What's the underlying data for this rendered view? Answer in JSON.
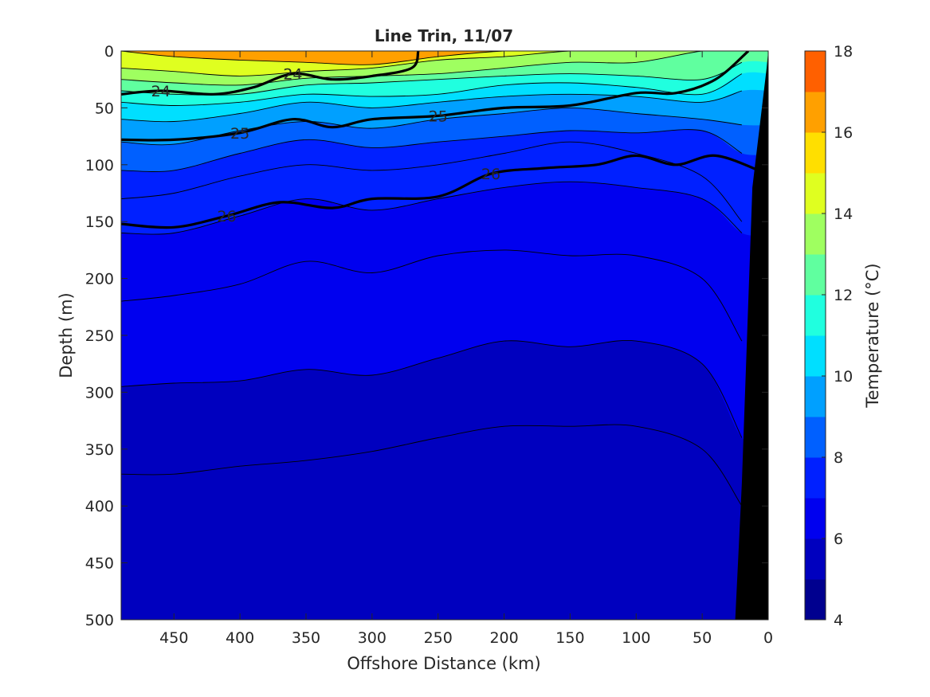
{
  "chart_data": {
    "type": "filled-contour section",
    "title": "Line Trin, 11/07",
    "xlabel": "Offshore Distance (km)",
    "ylabel": "Depth (m)",
    "colorbar_label": "Temperature (°C)",
    "xlim": [
      490,
      0
    ],
    "ylim": [
      0,
      500
    ],
    "x_ticks": [
      "450",
      "400",
      "350",
      "300",
      "250",
      "200",
      "150",
      "100",
      "50",
      "0"
    ],
    "x_tick_values": [
      450,
      400,
      350,
      300,
      250,
      200,
      150,
      100,
      50,
      0
    ],
    "y_ticks": [
      "0",
      "50",
      "100",
      "150",
      "200",
      "250",
      "300",
      "350",
      "400",
      "450",
      "500"
    ],
    "y_tick_values": [
      0,
      50,
      100,
      150,
      200,
      250,
      300,
      350,
      400,
      450,
      500
    ],
    "colorbar_ticks": [
      "4",
      "6",
      "8",
      "10",
      "12",
      "14",
      "16",
      "18"
    ],
    "colorbar_tick_values": [
      4,
      6,
      8,
      10,
      12,
      14,
      16,
      18
    ],
    "temperature_levels": [
      4,
      5,
      6,
      7,
      8,
      9,
      10,
      11,
      12,
      13,
      14,
      15,
      16,
      17,
      18
    ],
    "level_colors": [
      "#00008f",
      "#0000bf",
      "#0000ef",
      "#0020ff",
      "#0060ff",
      "#00a0ff",
      "#00dfff",
      "#20ffdf",
      "#60ff9f",
      "#9fff60",
      "#dfff20",
      "#ffdf00",
      "#ffa000",
      "#ff6000",
      "#ff2000",
      "#bf0000"
    ],
    "bottom_color": "#000000",
    "isotherm_distances_km": [
      490,
      450,
      400,
      350,
      300,
      250,
      200,
      150,
      100,
      50,
      20
    ],
    "isotherm_depths_m": {
      "15": [
        0,
        5,
        8,
        10,
        12,
        5,
        0,
        0,
        0,
        0,
        0
      ],
      "14": [
        15,
        18,
        22,
        18,
        15,
        8,
        5,
        0,
        0,
        0,
        0
      ],
      "13": [
        25,
        28,
        30,
        24,
        22,
        20,
        15,
        10,
        10,
        0,
        0
      ],
      "12": [
        35,
        38,
        38,
        30,
        28,
        25,
        22,
        20,
        22,
        25,
        10
      ],
      "11": [
        45,
        48,
        45,
        38,
        40,
        38,
        30,
        28,
        32,
        38,
        20
      ],
      "10": [
        60,
        62,
        55,
        45,
        50,
        45,
        40,
        38,
        40,
        45,
        35
      ],
      "9": [
        80,
        82,
        70,
        62,
        68,
        60,
        55,
        50,
        55,
        60,
        65
      ],
      "8": [
        105,
        105,
        90,
        78,
        85,
        80,
        75,
        70,
        72,
        70,
        90
      ],
      "7.5": [
        130,
        125,
        110,
        100,
        105,
        100,
        90,
        80,
        90,
        110,
        150
      ],
      "7": [
        160,
        160,
        145,
        130,
        140,
        130,
        120,
        115,
        120,
        130,
        160
      ],
      "6.5": [
        220,
        215,
        205,
        185,
        195,
        180,
        175,
        180,
        180,
        200,
        255
      ],
      "6": [
        295,
        292,
        290,
        280,
        285,
        270,
        255,
        260,
        255,
        275,
        340
      ],
      "5.5": [
        372,
        372,
        365,
        360,
        352,
        340,
        330,
        330,
        330,
        350,
        400
      ],
      "5": [
        500,
        500,
        500,
        500,
        500,
        500,
        500,
        500,
        500,
        500,
        500
      ]
    },
    "sigma_contours": [
      {
        "label": "24",
        "distance_km": [
          490,
          460,
          420,
          390,
          360,
          330,
          300,
          270,
          265
        ],
        "depth_m": [
          38,
          35,
          38,
          32,
          20,
          25,
          22,
          15,
          0
        ]
      },
      {
        "label": "25",
        "distance_km": [
          490,
          450,
          400,
          360,
          330,
          300,
          250,
          200,
          150,
          100,
          70,
          40,
          15
        ],
        "depth_m": [
          78,
          78,
          72,
          60,
          67,
          60,
          57,
          50,
          48,
          37,
          37,
          25,
          0
        ]
      },
      {
        "label": "26",
        "distance_km": [
          490,
          450,
          410,
          370,
          330,
          300,
          250,
          210,
          170,
          130,
          100,
          70,
          40,
          5
        ],
        "depth_m": [
          152,
          155,
          145,
          133,
          138,
          130,
          128,
          108,
          103,
          100,
          92,
          100,
          92,
          106
        ]
      }
    ],
    "bottom_profile_km": [
      [
        20,
        0
      ],
      [
        0,
        15
      ],
      [
        25,
        500
      ]
    ]
  }
}
